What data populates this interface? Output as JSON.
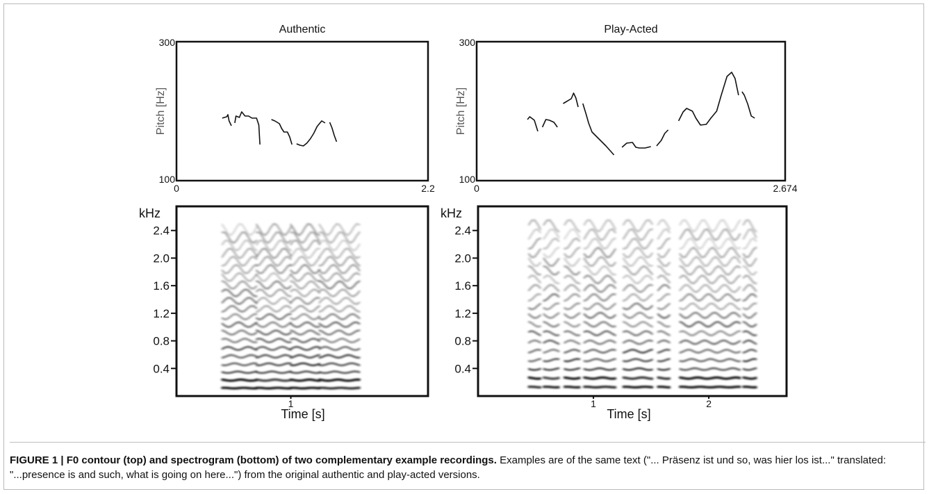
{
  "chart_data": [
    {
      "type": "line",
      "panel": "pitch",
      "title": "Authentic",
      "ylabel": "Pitch [Hz]",
      "ylim": [
        100,
        300
      ],
      "xlim": [
        0,
        2.2
      ],
      "y_tick_labels": [
        "300",
        "100"
      ],
      "x_tick_labels": [
        "0",
        "2.2"
      ],
      "series": [
        {
          "x": [
            0.4,
            0.44,
            0.45,
            0.46,
            0.48
          ],
          "y": [
            190,
            192,
            195,
            186,
            179
          ]
        },
        {
          "x": [
            0.51,
            0.52,
            0.55,
            0.57,
            0.6,
            0.63,
            0.66,
            0.7,
            0.72,
            0.73
          ],
          "y": [
            183,
            193,
            191,
            199,
            193,
            193,
            190,
            190,
            180,
            152
          ]
        },
        {
          "x": [
            0.83,
            0.86,
            0.9,
            0.92,
            0.94,
            0.97,
            0.99,
            1.01
          ],
          "y": [
            188,
            186,
            182,
            175,
            170,
            170,
            163,
            152
          ]
        },
        {
          "x": [
            1.05,
            1.08,
            1.11,
            1.14,
            1.17,
            1.2,
            1.23,
            1.27,
            1.3
          ],
          "y": [
            153,
            151,
            150,
            154,
            160,
            168,
            178,
            186,
            183
          ]
        },
        {
          "x": [
            1.34,
            1.36,
            1.38,
            1.4
          ],
          "y": [
            184,
            176,
            165,
            156
          ]
        }
      ]
    },
    {
      "type": "line",
      "panel": "pitch",
      "title": "Play-Acted",
      "ylabel": "Pitch [Hz]",
      "ylim": [
        100,
        300
      ],
      "xlim": [
        0,
        2.674
      ],
      "y_tick_labels": [
        "300",
        "100"
      ],
      "x_tick_labels": [
        "0",
        "2.674"
      ],
      "series": [
        {
          "x": [
            0.44,
            0.46,
            0.5,
            0.53
          ],
          "y": [
            188,
            192,
            187,
            171
          ]
        },
        {
          "x": [
            0.57,
            0.6,
            0.63,
            0.67,
            0.7
          ],
          "y": [
            177,
            188,
            187,
            184,
            177
          ]
        },
        {
          "x": [
            0.75,
            0.77,
            0.82,
            0.84,
            0.86,
            0.88
          ],
          "y": [
            211,
            213,
            218,
            226,
            219,
            206
          ]
        },
        {
          "x": [
            0.92,
            0.95,
            0.97,
            1.0,
            1.06,
            1.12,
            1.19
          ],
          "y": [
            211,
            195,
            183,
            170,
            160,
            150,
            137
          ]
        },
        {
          "x": [
            1.26,
            1.3,
            1.35,
            1.38,
            1.41,
            1.46,
            1.51
          ],
          "y": [
            148,
            154,
            155,
            148,
            147,
            147,
            149
          ]
        },
        {
          "x": [
            1.56,
            1.6,
            1.63,
            1.66
          ],
          "y": [
            150,
            158,
            168,
            173
          ]
        },
        {
          "x": [
            1.75,
            1.79,
            1.82,
            1.87,
            1.9,
            1.94,
            1.99,
            2.03,
            2.08,
            2.12,
            2.17,
            2.21,
            2.24,
            2.27
          ],
          "y": [
            186,
            199,
            204,
            200,
            190,
            180,
            181,
            190,
            200,
            223,
            250,
            256,
            247,
            223
          ]
        },
        {
          "x": [
            2.3,
            2.32,
            2.35,
            2.38,
            2.41
          ],
          "y": [
            228,
            223,
            210,
            193,
            190
          ]
        }
      ]
    },
    {
      "type": "heatmap",
      "panel": "spectrogram",
      "title": "",
      "xlabel": "Time [s]",
      "ylabel": "kHz",
      "xlim": [
        0,
        2.2
      ],
      "ylim": [
        0,
        2.75
      ],
      "x_ticks": [
        1
      ],
      "x_tick_labels": [
        "1"
      ],
      "y_ticks": [
        0.4,
        0.8,
        1.2,
        1.6,
        2.0,
        2.4
      ],
      "y_tick_labels": [
        "0.4",
        "0.8",
        "1.2",
        "1.6",
        "2.0",
        "2.4"
      ],
      "time_span": [
        0.4,
        1.6
      ],
      "segments": [
        [
          0.4,
          0.7
        ],
        [
          0.7,
          1.0
        ],
        [
          1.0,
          1.25
        ],
        [
          1.25,
          1.6
        ]
      ],
      "f0_khz": 0.115,
      "max_khz": 2.5
    },
    {
      "type": "heatmap",
      "panel": "spectrogram",
      "title": "",
      "xlabel": "Time [s]",
      "ylabel": "kHz",
      "xlim": [
        0,
        2.674
      ],
      "ylim": [
        0,
        2.75
      ],
      "x_ticks": [
        1,
        2
      ],
      "x_tick_labels": [
        "1",
        "2"
      ],
      "y_ticks": [
        0.4,
        0.8,
        1.2,
        1.6,
        2.0,
        2.4
      ],
      "y_tick_labels": [
        "0.4",
        "0.8",
        "1.2",
        "1.6",
        "2.0",
        "2.4"
      ],
      "time_span": [
        0.44,
        2.4
      ],
      "segments": [
        [
          0.44,
          0.54
        ],
        [
          0.57,
          0.7
        ],
        [
          0.75,
          0.88
        ],
        [
          0.92,
          1.19
        ],
        [
          1.26,
          1.51
        ],
        [
          1.56,
          1.66
        ],
        [
          1.75,
          2.27
        ],
        [
          2.3,
          2.41
        ]
      ],
      "f0_khz": 0.13,
      "max_khz": 2.5
    }
  ],
  "caption": {
    "lead": "FIGURE 1 | F0 contour (top) and spectrogram (bottom) of two complementary example recordings.",
    "body": " Examples are of the same text (\"... Präsenz ist und so, was hier los ist...\" translated: \"...presence is and such, what is going on here...\") from the original authentic and play-acted versions."
  }
}
